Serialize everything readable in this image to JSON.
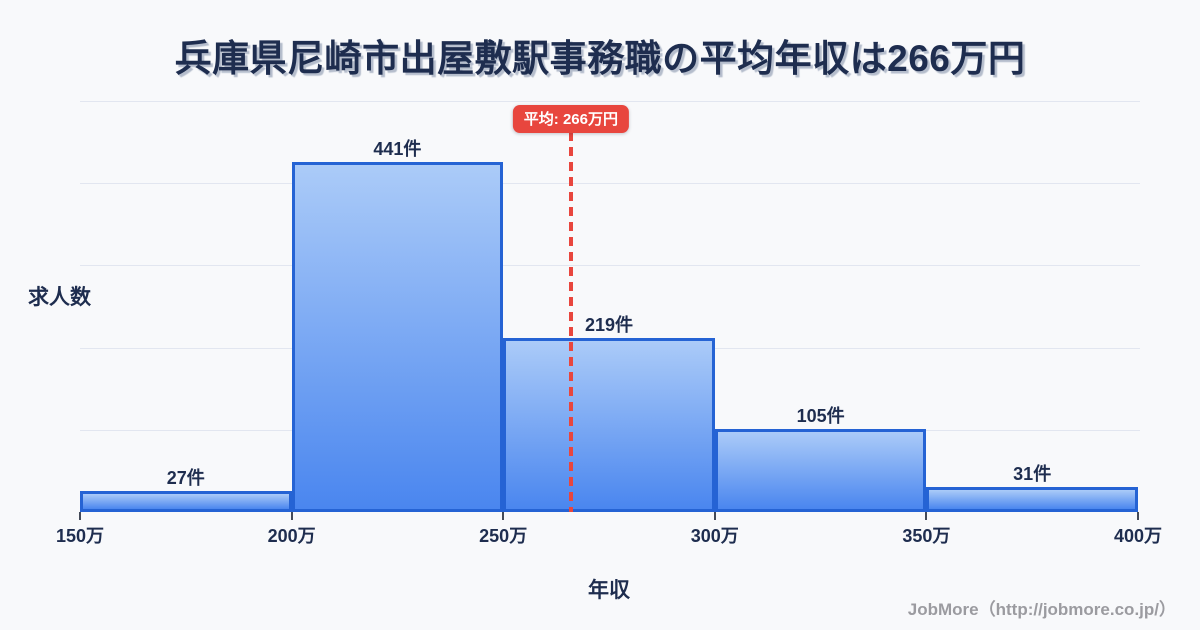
{
  "title": "兵庫県尼崎市出屋敷駅事務職の平均年収は266万円",
  "chart_data": {
    "type": "bar",
    "subtype": "histogram",
    "title": "兵庫県尼崎市出屋敷駅事務職の平均年収は266万円",
    "xlabel": "年収",
    "ylabel": "求人数",
    "unit": "件",
    "bin_edge_labels": [
      "150万",
      "200万",
      "250万",
      "300万",
      "350万",
      "400万"
    ],
    "bin_edge_values": [
      150,
      200,
      250,
      300,
      350,
      400
    ],
    "values": [
      27,
      441,
      219,
      105,
      31
    ],
    "bar_labels": [
      "27件",
      "441件",
      "219件",
      "105件",
      "31件"
    ],
    "average": {
      "value": 266,
      "label": "平均: 266万円",
      "axis_min": 150,
      "axis_max": 400
    },
    "ylim": [
      0,
      500
    ],
    "grid": "horizontal",
    "legend": "none"
  },
  "colors": {
    "background": "#f8f9fb",
    "title_text": "#1e2d4f",
    "bar_fill_top": "#abcbf8",
    "bar_fill_bottom": "#4a86ef",
    "bar_border": "#2563d4",
    "average_accent": "#e8463e",
    "gridline": "#e2e6f0",
    "footer_text": "#9b9ba0"
  },
  "footer": {
    "credit": "JobMore（http://jobmore.co.jp/）"
  }
}
